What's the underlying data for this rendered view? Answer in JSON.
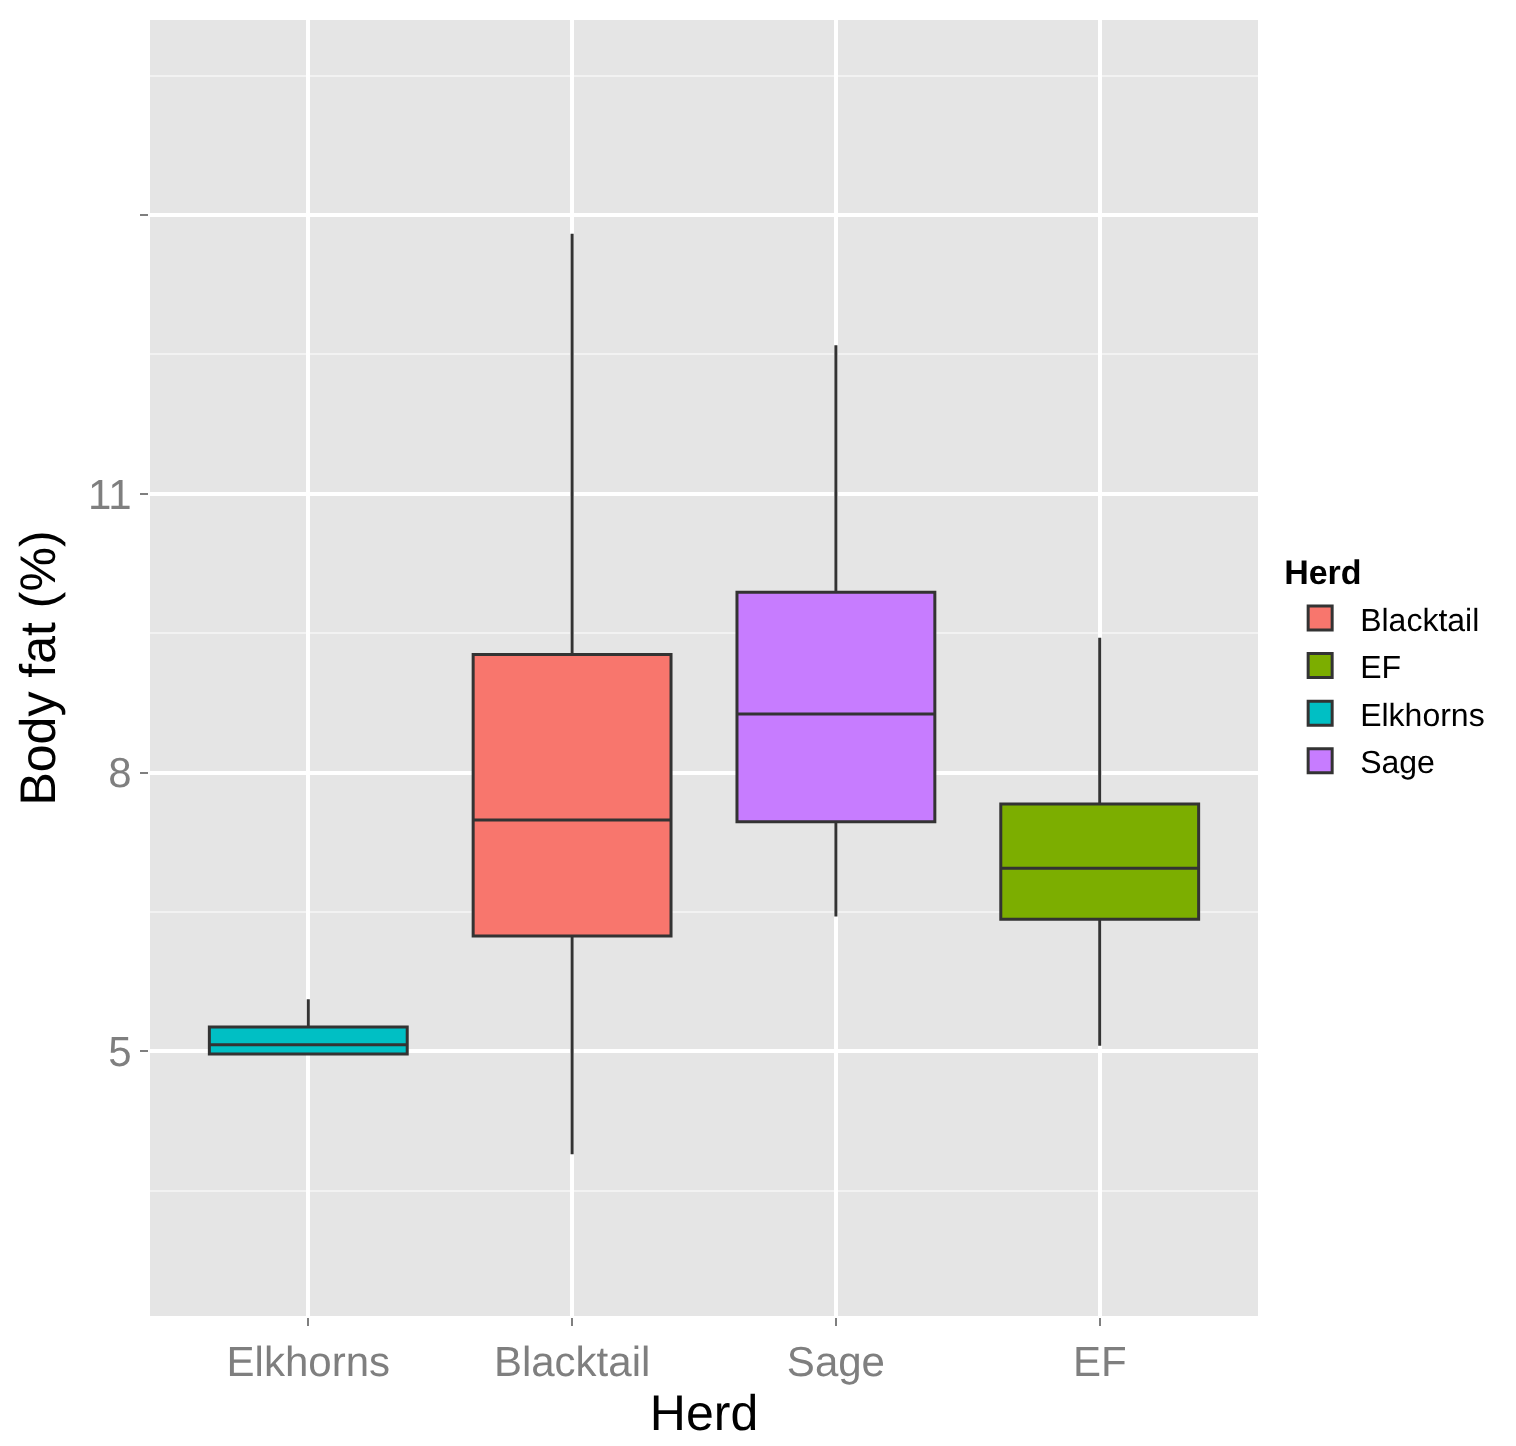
{
  "chart_data": {
    "type": "box",
    "xlabel": "Herd",
    "ylabel": "Body fat (%)",
    "legend_title": "Herd",
    "categories": [
      "Elkhorns",
      "Blacktail",
      "Sage",
      "EF"
    ],
    "series": [
      {
        "name": "Blacktail",
        "color": "#f8766d",
        "x": [
          "Blacktail"
        ],
        "boxes": [
          {
            "low": 3.89,
            "q1": 6.24,
            "median": 7.49,
            "q3": 9.27,
            "high": 13.8
          }
        ]
      },
      {
        "name": "EF",
        "color": "#7cae00",
        "x": [
          "EF"
        ],
        "boxes": [
          {
            "low": 5.06,
            "q1": 6.42,
            "median": 6.97,
            "q3": 7.66,
            "high": 9.45
          }
        ]
      },
      {
        "name": "Elkhorns",
        "color": "#00bfc4",
        "x": [
          "Elkhorns"
        ],
        "boxes": [
          {
            "low": 4.97,
            "q1": 4.97,
            "median": 5.07,
            "q3": 5.26,
            "high": 5.56
          }
        ]
      },
      {
        "name": "Sage",
        "color": "#c77cff",
        "x": [
          "Sage"
        ],
        "boxes": [
          {
            "low": 6.45,
            "q1": 7.47,
            "median": 8.63,
            "q3": 9.94,
            "high": 12.6
          }
        ]
      }
    ],
    "ylim": [
      2.15,
      16.1
    ],
    "yticks": [
      5,
      8,
      11,
      {
        "value": 14,
        "label": null
      }
    ],
    "grid": true,
    "legend": "right"
  }
}
